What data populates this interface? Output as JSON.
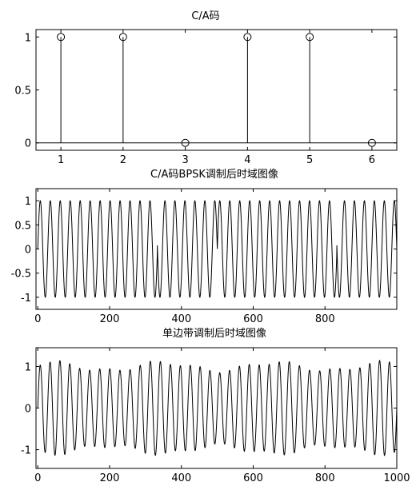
{
  "chart_data": [
    {
      "type": "stem",
      "title": "C/A码",
      "x": [
        1,
        2,
        3,
        4,
        5,
        6
      ],
      "values": [
        1,
        1,
        0,
        1,
        1,
        0
      ],
      "xlim": [
        0.6,
        6.4
      ],
      "ylim": [
        -0.07,
        1.07
      ],
      "xticks": [
        "1",
        "2",
        "3",
        "4",
        "5",
        "6"
      ],
      "xtick_values": [
        1,
        2,
        3,
        4,
        5,
        6
      ],
      "yticks": [
        "0",
        "0.5",
        "1"
      ],
      "ytick_values": [
        0,
        0.5,
        1
      ],
      "baseline": 0,
      "marker": "circle",
      "grid": false
    },
    {
      "type": "line",
      "title": "C/A码BPSK调制后时域图像",
      "x_range": [
        0,
        1000
      ],
      "xlim": [
        -5,
        1000
      ],
      "ylim": [
        -1.25,
        1.25
      ],
      "amplitude": 1,
      "cycles_in_range": 36,
      "phase_flips_at": [
        333,
        500,
        833
      ],
      "xticks": [
        "0",
        "200",
        "400",
        "600",
        "800"
      ],
      "xtick_values": [
        0,
        200,
        400,
        600,
        800
      ],
      "yticks": [
        "-1",
        "-0.5",
        "0",
        "0.5",
        "1"
      ],
      "ytick_values": [
        -1,
        -0.5,
        0,
        0.5,
        1
      ],
      "grid": false
    },
    {
      "type": "line",
      "title": "单边带调制后时域图像",
      "x_range": [
        0,
        1000
      ],
      "xlim": [
        -5,
        1000
      ],
      "ylim": [
        -1.45,
        1.45
      ],
      "amplitude": 1,
      "cycles_in_range": 36,
      "envelope_ripple": 0.1,
      "xticks": [
        "0",
        "200",
        "400",
        "600",
        "800",
        "1000"
      ],
      "xtick_values": [
        0,
        200,
        400,
        600,
        800,
        1000
      ],
      "yticks": [
        "-1",
        "0",
        "1"
      ],
      "ytick_values": [
        -1,
        0,
        1
      ],
      "grid": false
    }
  ]
}
